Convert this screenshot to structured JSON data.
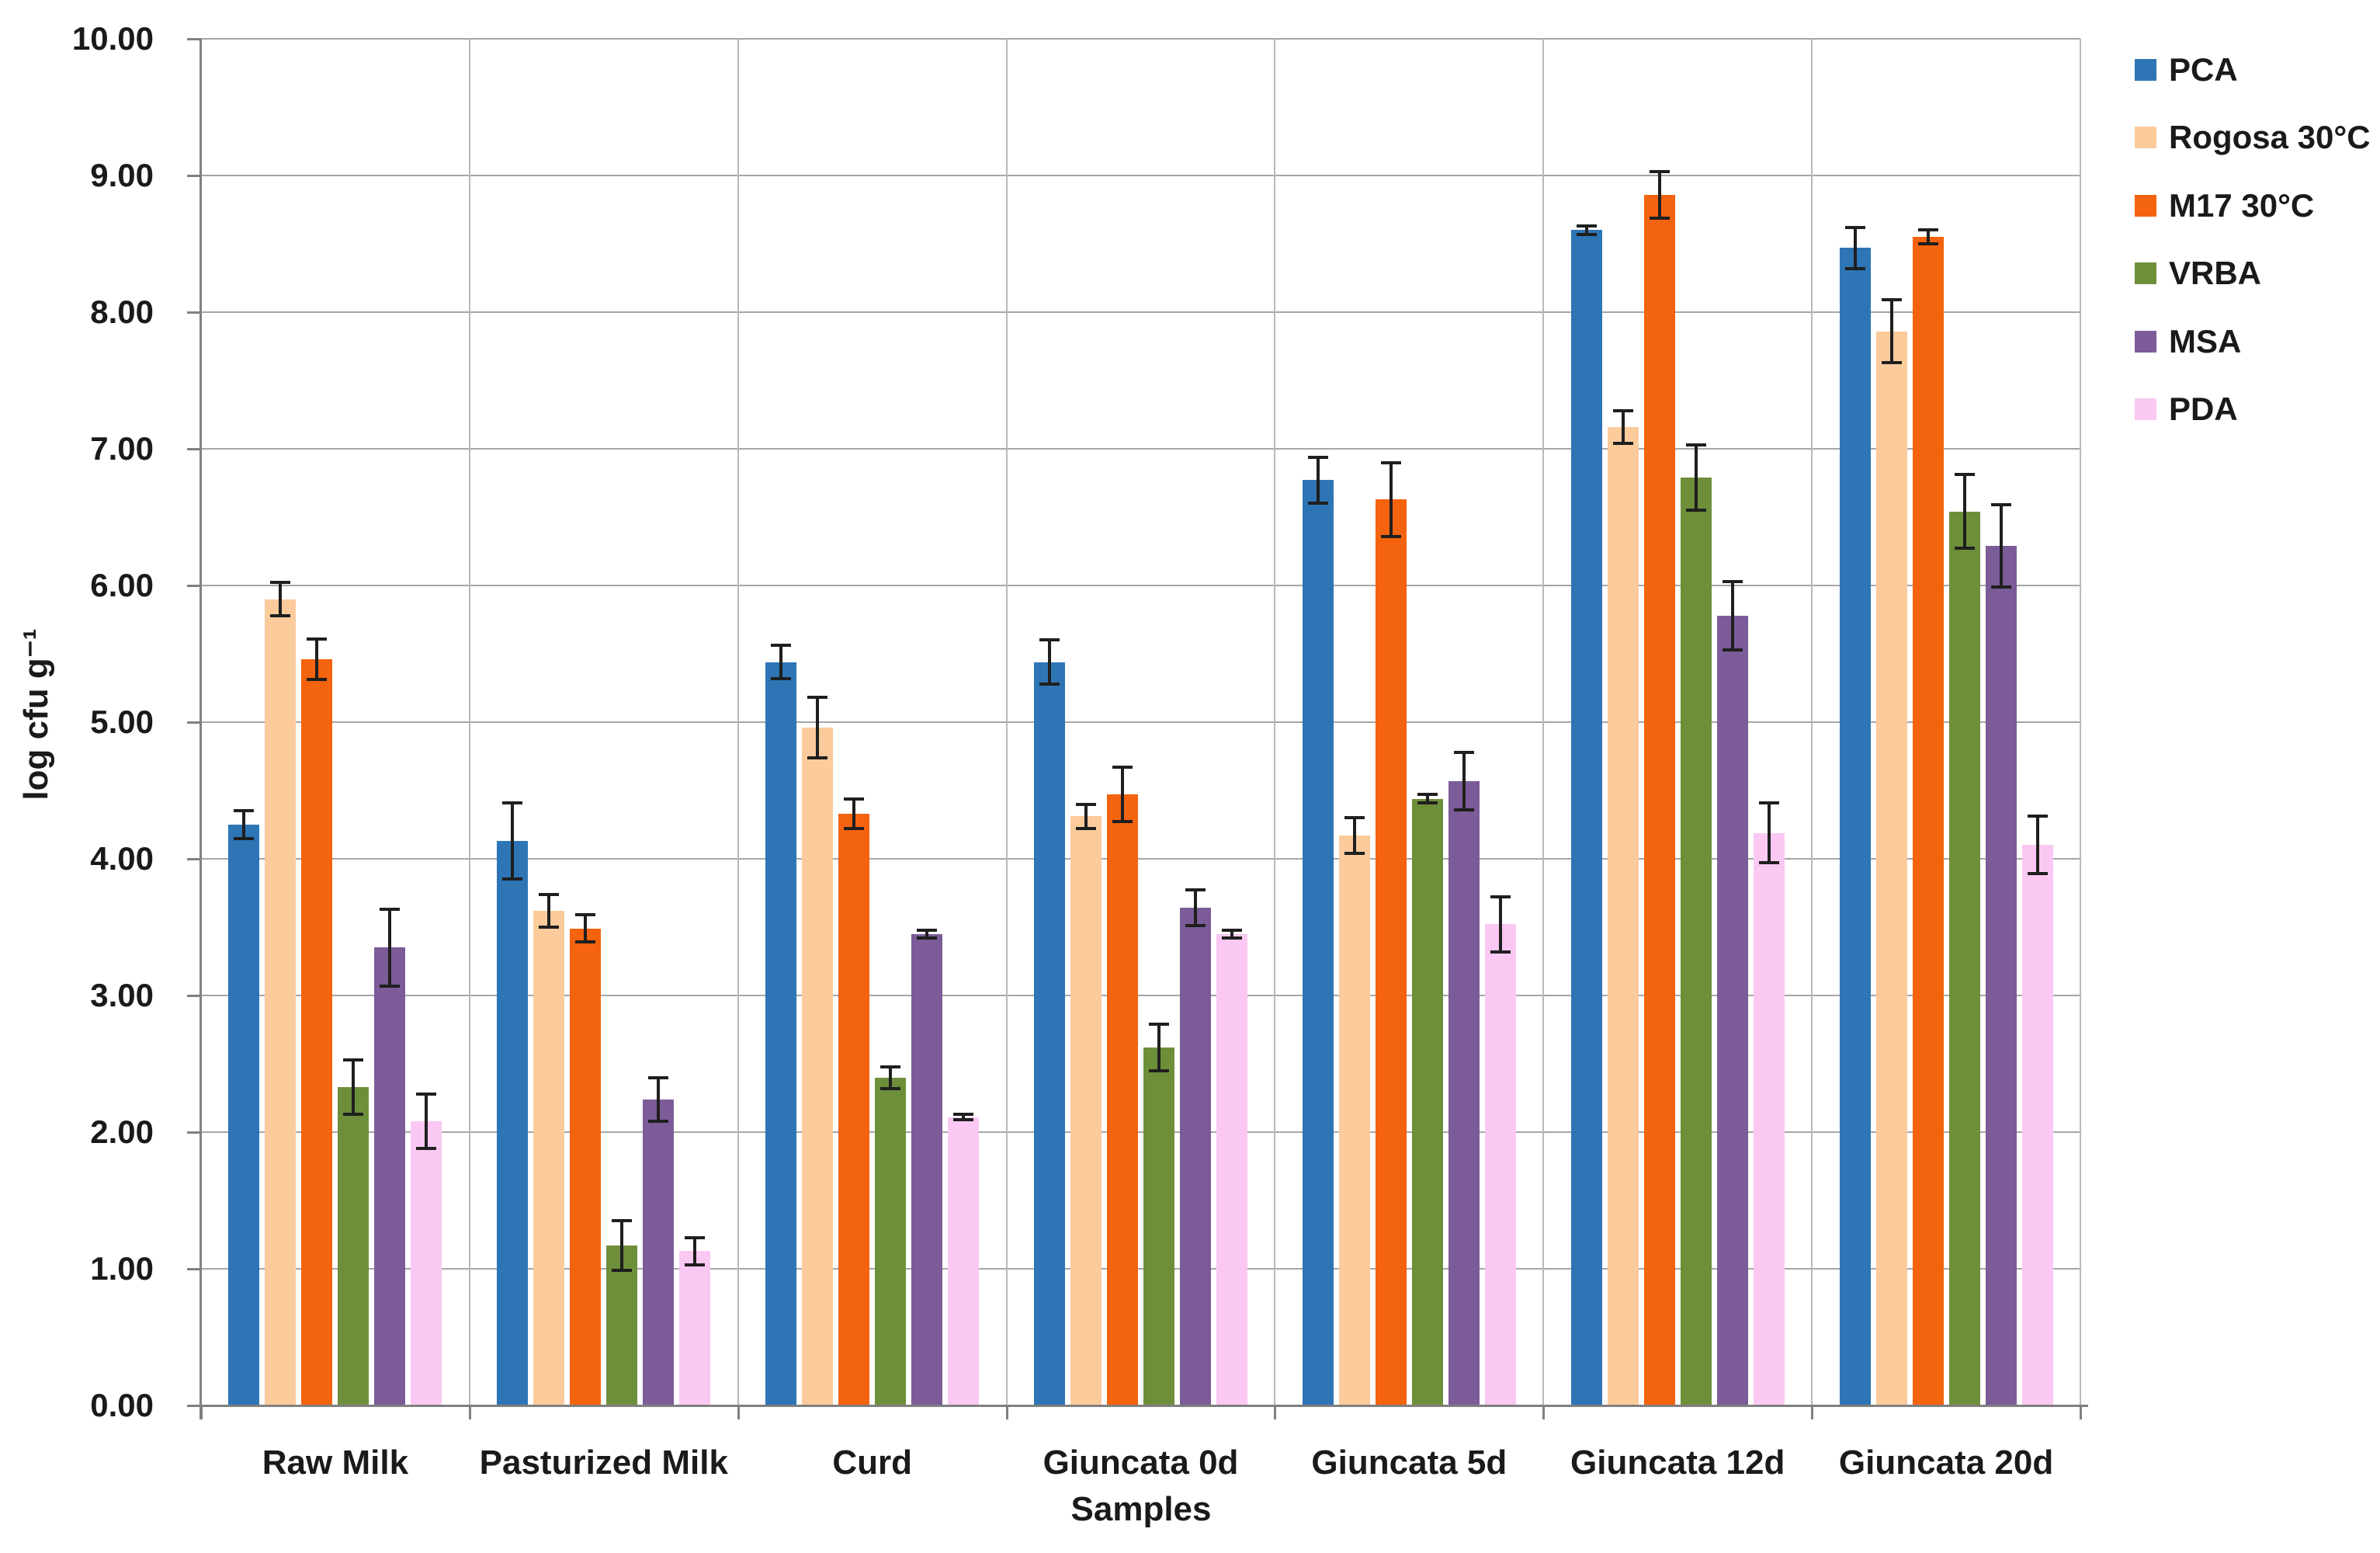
{
  "chart_data": {
    "type": "bar",
    "title": "",
    "xlabel": "Samples",
    "ylabel": "log cfu g⁻¹",
    "ylim": [
      0,
      10
    ],
    "ytick_step": 1,
    "ytick_decimals": 2,
    "grid": true,
    "legend_position": "right",
    "error_bars": true,
    "categories": [
      "Raw Milk",
      "Pasturized Milk",
      "Curd",
      "Giuncata 0d",
      "Giuncata 5d",
      "Giuncata 12d",
      "Giuncata 20d"
    ],
    "series": [
      {
        "name": "PCA",
        "color": "#2e75b5",
        "values": [
          4.25,
          4.13,
          5.44,
          5.44,
          6.77,
          8.6,
          8.47
        ],
        "errors": [
          0.1,
          0.28,
          0.12,
          0.16,
          0.17,
          0.03,
          0.15
        ]
      },
      {
        "name": "Rogosa 30°C",
        "color": "#fbcb9c",
        "values": [
          5.9,
          3.62,
          4.96,
          4.31,
          4.17,
          7.16,
          7.86
        ],
        "errors": [
          0.12,
          0.12,
          0.22,
          0.09,
          0.13,
          0.12,
          0.23
        ]
      },
      {
        "name": "M17 30°C",
        "color": "#f4630e",
        "values": [
          5.46,
          3.49,
          4.33,
          4.47,
          6.63,
          8.86,
          8.55
        ],
        "errors": [
          0.15,
          0.1,
          0.11,
          0.2,
          0.27,
          0.17,
          0.05
        ]
      },
      {
        "name": "VRBA",
        "color": "#6e8f3a",
        "values": [
          2.33,
          1.17,
          2.4,
          2.62,
          4.44,
          6.79,
          6.54
        ],
        "errors": [
          0.2,
          0.18,
          0.08,
          0.17,
          0.03,
          0.24,
          0.27
        ]
      },
      {
        "name": "MSA",
        "color": "#7b5c99",
        "values": [
          3.35,
          2.24,
          3.45,
          3.64,
          4.57,
          5.78,
          6.29
        ],
        "errors": [
          0.28,
          0.16,
          0.03,
          0.13,
          0.21,
          0.25,
          0.3
        ]
      },
      {
        "name": "PDA",
        "color": "#fac8f2",
        "values": [
          2.08,
          1.13,
          2.11,
          3.45,
          3.52,
          4.19,
          4.1
        ],
        "errors": [
          0.2,
          0.1,
          0.02,
          0.03,
          0.2,
          0.22,
          0.21
        ]
      }
    ]
  }
}
